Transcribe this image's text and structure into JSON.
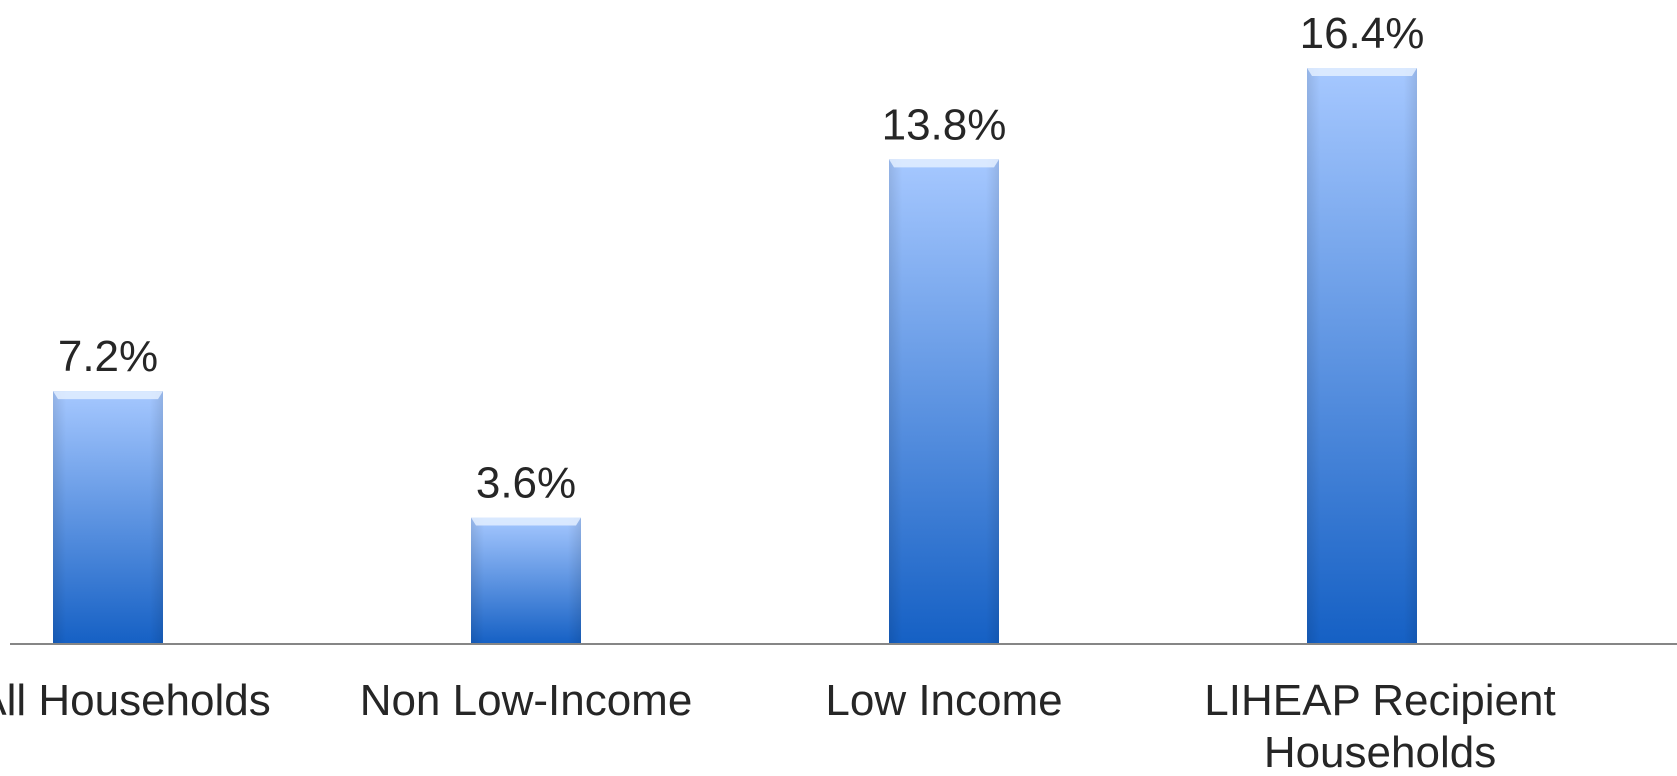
{
  "chart_data": {
    "type": "bar",
    "categories": [
      [
        "All Households"
      ],
      [
        "Non Low-Income"
      ],
      [
        "Low Income"
      ],
      [
        "LIHEAP Recipient",
        "Households"
      ]
    ],
    "values": [
      7.2,
      3.6,
      13.8,
      16.4
    ],
    "value_labels": [
      "7.2%",
      "3.6%",
      "13.8%",
      "16.4%"
    ],
    "unit": "%",
    "ylim": [
      0,
      16.4
    ],
    "grid": false,
    "legend": "none",
    "colors": {
      "bar_top": "#a6c8ff",
      "bar_bottom": "#1560c4",
      "bar_cap": "#e3eeff",
      "axis": "#868686",
      "text": "#262626"
    }
  }
}
